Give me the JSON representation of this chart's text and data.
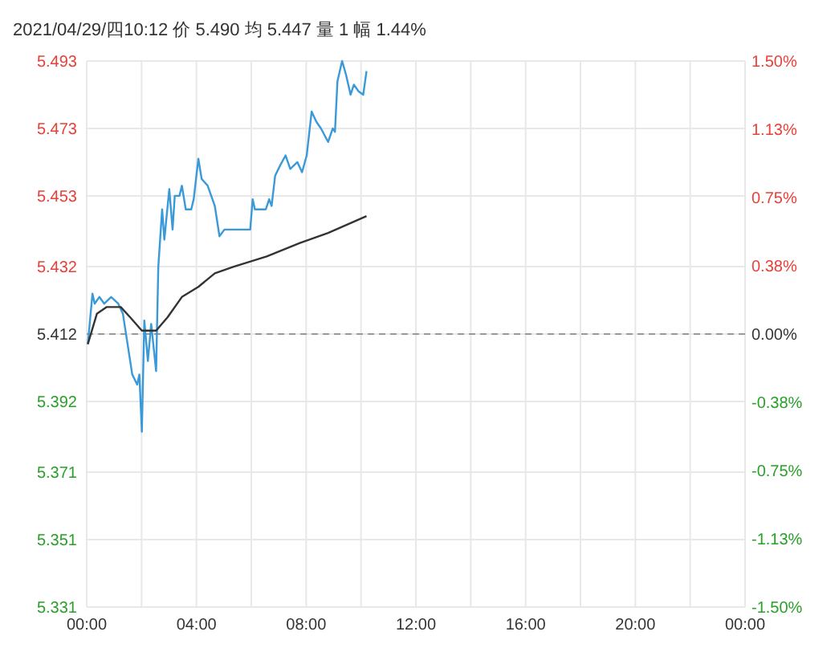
{
  "chart_data": {
    "type": "line",
    "title": "2021/04/29/四10:12 价 5.490 均 5.447 量 1 幅 1.44%",
    "xlim": [
      0,
      24
    ],
    "xticks": [
      {
        "value": 0,
        "label": "00:00"
      },
      {
        "value": 2,
        "label": null
      },
      {
        "value": 4,
        "label": "04:00"
      },
      {
        "value": 6,
        "label": null
      },
      {
        "value": 8,
        "label": "08:00"
      },
      {
        "value": 10,
        "label": null
      },
      {
        "value": 12,
        "label": "12:00"
      },
      {
        "value": 14,
        "label": null
      },
      {
        "value": 16,
        "label": "16:00"
      },
      {
        "value": 18,
        "label": null
      },
      {
        "value": 20,
        "label": "20:00"
      },
      {
        "value": 22,
        "label": null
      },
      {
        "value": 24,
        "label": "00:00"
      }
    ],
    "ylim": [
      5.331,
      5.493
    ],
    "yticks": [
      5.331,
      5.351,
      5.371,
      5.392,
      5.412,
      5.432,
      5.453,
      5.473,
      5.493
    ],
    "y2lim": [
      -1.5,
      1.5
    ],
    "y2ticks": [
      {
        "value": -1.5,
        "label": "-1.50%"
      },
      {
        "value": -1.125,
        "label": "-1.13%"
      },
      {
        "value": -0.75,
        "label": "-0.75%"
      },
      {
        "value": -0.375,
        "label": "-0.38%"
      },
      {
        "value": 0,
        "label": "0.00%"
      },
      {
        "value": 0.375,
        "label": "0.38%"
      },
      {
        "value": 0.75,
        "label": "0.75%"
      },
      {
        "value": 1.125,
        "label": "1.13%"
      },
      {
        "value": 1.5,
        "label": "1.50%"
      }
    ],
    "grid": true,
    "marker": "none",
    "line_style": "solid",
    "ref_lines": [
      {
        "axis": "y",
        "value": 5.412,
        "label": null,
        "color": "#999999",
        "line_style": "dashed"
      }
    ],
    "series": [
      {
        "color": "#3a9ad9",
        "x": [
          0.04,
          0.21,
          0.29,
          0.46,
          0.64,
          0.89,
          1.15,
          1.32,
          1.49,
          1.66,
          1.84,
          1.92,
          2.01,
          2.1,
          2.23,
          2.35,
          2.53,
          2.61,
          2.75,
          2.83,
          3.01,
          3.13,
          3.21,
          3.38,
          3.47,
          3.61,
          3.81,
          3.9,
          4.07,
          4.19,
          4.41,
          4.67,
          4.84,
          5.02,
          5.96,
          6.05,
          6.13,
          6.53,
          6.65,
          6.74,
          6.87,
          7.05,
          7.25,
          7.42,
          7.68,
          7.85,
          8.02,
          8.2,
          8.37,
          8.54,
          8.8,
          8.97,
          9.05,
          9.14,
          9.31,
          9.45,
          9.62,
          9.74,
          9.91,
          10.08,
          10.2
        ],
        "values": [
          5.409,
          5.424,
          5.421,
          5.423,
          5.421,
          5.423,
          5.421,
          5.418,
          5.409,
          5.4,
          5.397,
          5.4,
          5.383,
          5.416,
          5.404,
          5.415,
          5.401,
          5.432,
          5.449,
          5.44,
          5.455,
          5.443,
          5.453,
          5.453,
          5.456,
          5.449,
          5.449,
          5.452,
          5.464,
          5.458,
          5.456,
          5.45,
          5.441,
          5.443,
          5.443,
          5.452,
          5.449,
          5.449,
          5.452,
          5.45,
          5.459,
          5.462,
          5.465,
          5.461,
          5.463,
          5.46,
          5.465,
          5.478,
          5.475,
          5.473,
          5.469,
          5.473,
          5.472,
          5.487,
          5.493,
          5.489,
          5.483,
          5.486,
          5.484,
          5.483,
          5.49
        ]
      },
      {
        "color": "#333333",
        "x": [
          0.04,
          0.37,
          0.72,
          1.24,
          1.58,
          2.01,
          2.53,
          2.95,
          3.47,
          4.07,
          4.67,
          5.36,
          6.56,
          7.77,
          8.8,
          10.2
        ],
        "values": [
          5.409,
          5.418,
          5.42,
          5.42,
          5.417,
          5.413,
          5.413,
          5.417,
          5.423,
          5.426,
          5.43,
          5.432,
          5.435,
          5.439,
          5.442,
          5.447
        ]
      }
    ]
  }
}
